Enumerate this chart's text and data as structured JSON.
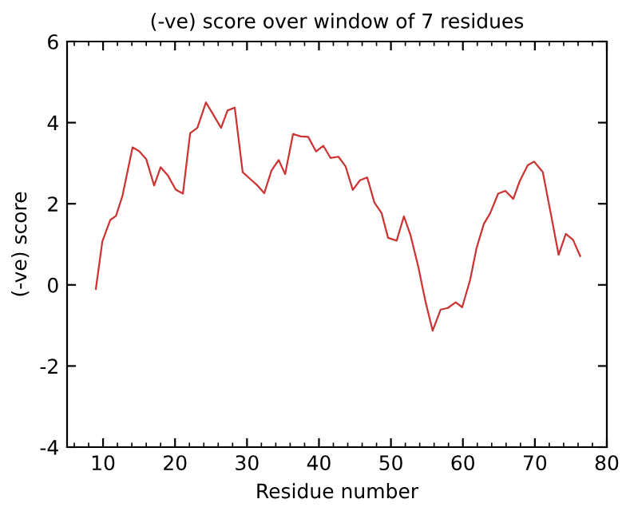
{
  "chart_data": {
    "type": "line",
    "title": "(-ve) score over window of 7 residues",
    "xlabel": "Residue number",
    "ylabel": "(-ve) score",
    "series": [
      {
        "color": "#cc3333",
        "x": [
          9.0,
          9.9,
          11.0,
          11.8,
          12.7,
          14.1,
          15.0,
          16.0,
          17.1,
          18.0,
          19.0,
          20.1,
          21.1,
          22.1,
          23.1,
          24.3,
          25.3,
          26.4,
          27.3,
          28.3,
          29.4,
          30.4,
          31.4,
          32.4,
          33.4,
          34.4,
          35.3,
          36.4,
          37.5,
          38.5,
          39.6,
          40.6,
          41.6,
          42.7,
          43.7,
          44.7,
          45.7,
          46.7,
          47.7,
          48.7,
          49.6,
          50.8,
          51.8,
          52.7,
          53.8,
          54.8,
          55.8,
          56.9,
          57.9,
          59.0,
          59.9,
          61.0,
          61.9,
          62.9,
          63.8,
          64.9,
          65.9,
          67.0,
          67.9,
          69.0,
          69.9,
          71.1,
          72.2,
          73.3,
          74.3,
          75.3,
          76.3
        ],
        "values": [
          -0.1,
          1.07,
          1.6,
          1.7,
          2.2,
          3.39,
          3.3,
          3.1,
          2.45,
          2.9,
          2.7,
          2.35,
          2.25,
          3.74,
          3.87,
          4.5,
          4.2,
          3.87,
          4.3,
          4.37,
          2.78,
          2.62,
          2.46,
          2.26,
          2.82,
          3.08,
          2.73,
          3.72,
          3.66,
          3.65,
          3.29,
          3.43,
          3.13,
          3.16,
          2.92,
          2.34,
          2.58,
          2.65,
          2.03,
          1.77,
          1.16,
          1.09,
          1.69,
          1.24,
          0.45,
          -0.41,
          -1.13,
          -0.61,
          -0.57,
          -0.43,
          -0.55,
          0.12,
          0.91,
          1.5,
          1.77,
          2.25,
          2.32,
          2.12,
          2.56,
          2.95,
          3.04,
          2.78,
          1.77,
          0.74,
          1.26,
          1.11,
          0.71
        ]
      }
    ],
    "xlim": [
      5,
      80
    ],
    "xticks": [
      10,
      20,
      30,
      40,
      50,
      60,
      70,
      80
    ],
    "ylim": [
      -4,
      6
    ],
    "yticks": [
      -4,
      -2,
      0,
      2,
      4,
      6
    ],
    "grid": false,
    "legend": false,
    "marker": "none",
    "line_style": "solid"
  }
}
